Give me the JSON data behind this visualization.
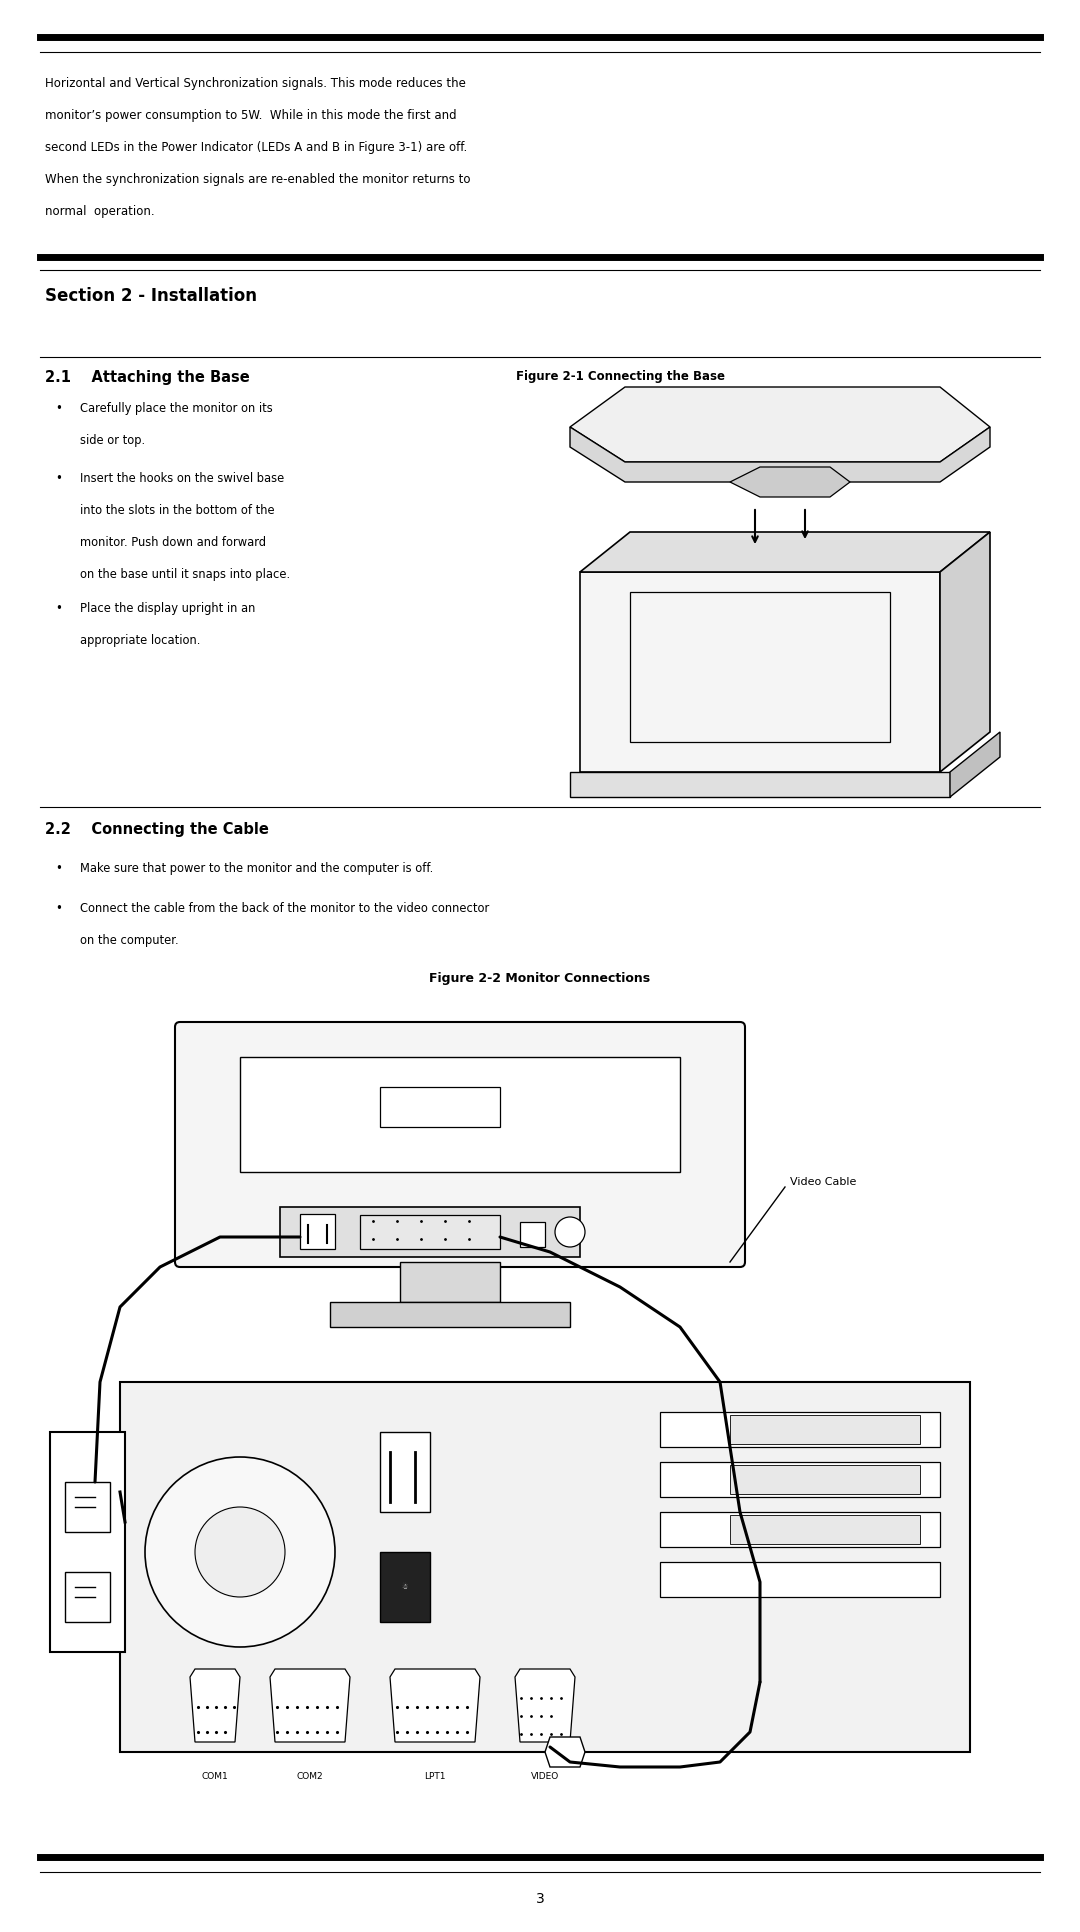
{
  "bg_color": "#ffffff",
  "text_color": "#000000",
  "page_width": 10.8,
  "page_height": 19.32,
  "intro_text_lines": [
    "Horizontal and Vertical Synchronization signals. This mode reduces the",
    "monitor’s power consumption to 5W.  While in this mode the first and",
    "second LEDs in the Power Indicator (LEDs A and B in Figure 3-1) are off.",
    "When the synchronization signals are re-enabled the monitor returns to",
    "normal  operation."
  ],
  "section2_title": "Section 2 - Installation",
  "section21_title": "2.1    Attaching the Base",
  "fig21_title": "Figure 2-1 Connecting the Base",
  "bullet21_1a": "Carefully place the monitor on its",
  "bullet21_1b": "side or top.",
  "bullet21_2a": "Insert the hooks on the swivel base",
  "bullet21_2b": "into the slots in the bottom of the",
  "bullet21_2c": "monitor. Push down and forward",
  "bullet21_2d": "on the base until it snaps into place.",
  "bullet21_3a": "Place the display upright in an",
  "bullet21_3b": "appropriate location.",
  "section22_title": "2.2    Connecting the Cable",
  "bullet22_1": "Make sure that power to the monitor and the computer is off.",
  "bullet22_2a": "Connect the cable from the back of the monitor to the video connector",
  "bullet22_2b": "on the computer.",
  "fig22_title": "Figure 2-2 Monitor Connections",
  "video_cable_label": "Video Cable",
  "port_labels": [
    "COM1",
    "COM2",
    "LPT1",
    "VIDEO"
  ],
  "page_number": "3"
}
